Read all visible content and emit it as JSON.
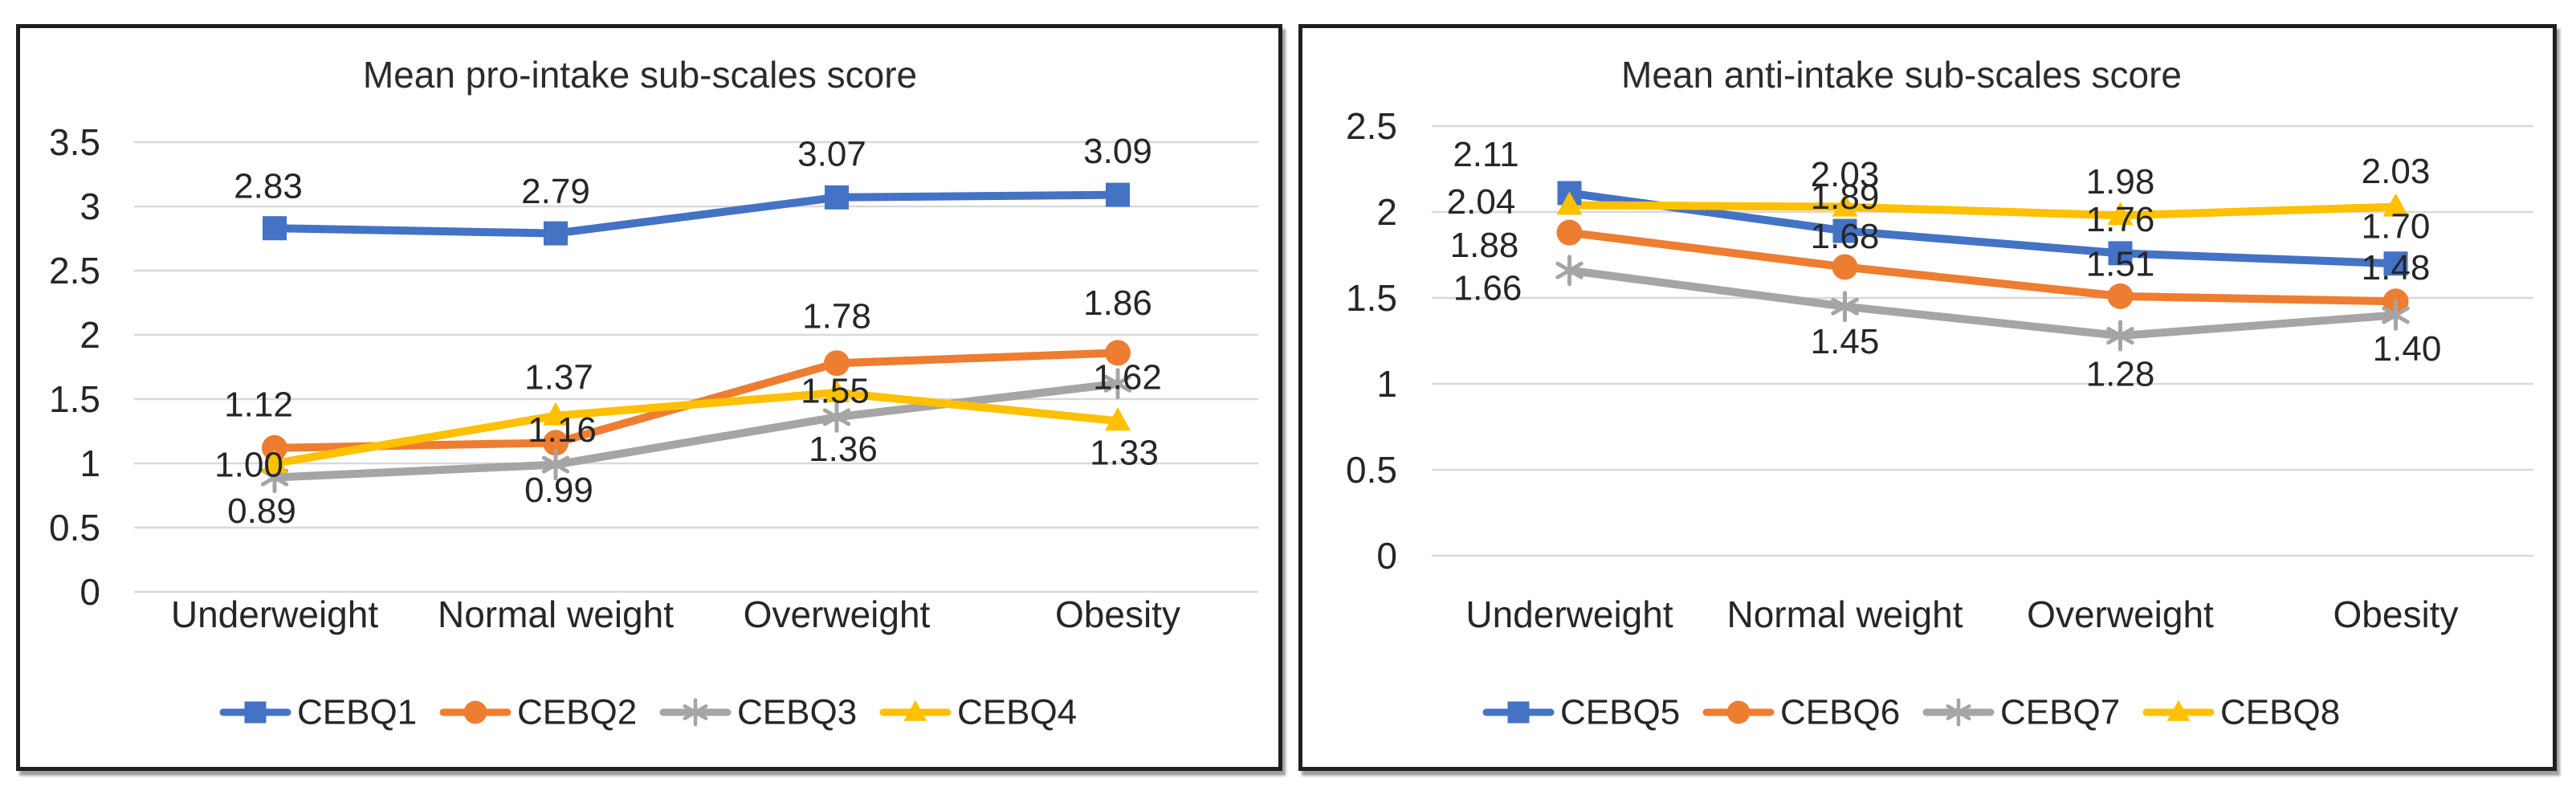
{
  "figure": {
    "background": "#ffffff",
    "panel_border_color": "#1f1f1f",
    "gridline_color": "#D9D9D9",
    "text_color": "#262626",
    "data_label_color": "#1f1f1f"
  },
  "chart_data": [
    {
      "type": "line",
      "title": "Mean pro-intake sub-scales score",
      "categories": [
        "Underweight",
        "Normal weight",
        "Overweight",
        "Obesity"
      ],
      "series": [
        {
          "name": "CEBQ1",
          "color": "#4472C4",
          "marker": "square",
          "values": [
            2.83,
            2.79,
            3.07,
            3.09
          ],
          "labels": [
            "2.83",
            "2.79",
            "3.07",
            "3.09"
          ]
        },
        {
          "name": "CEBQ2",
          "color": "#ED7D31",
          "marker": "circle",
          "values": [
            1.12,
            1.16,
            1.78,
            1.86
          ],
          "labels": [
            "1.12",
            "1.16",
            "1.78",
            "1.86"
          ]
        },
        {
          "name": "CEBQ3",
          "color": "#A5A5A5",
          "marker": "asterisk",
          "values": [
            0.89,
            0.99,
            1.36,
            1.62
          ],
          "labels": [
            "0.89",
            "0.99",
            "1.36",
            "1.62"
          ]
        },
        {
          "name": "CEBQ4",
          "color": "#FFC000",
          "marker": "triangle",
          "values": [
            1.0,
            1.37,
            1.55,
            1.33
          ],
          "labels": [
            "1.00",
            "1.37",
            "1.55",
            "1.33"
          ]
        }
      ],
      "ylim": [
        0,
        3.5
      ],
      "ytick_values": [
        3.5,
        3,
        2.5,
        2,
        1.5,
        1,
        0.5,
        0
      ],
      "yticks": [
        "3.5",
        "3",
        "2.5",
        "2",
        "1.5",
        "1",
        "0.5",
        "0"
      ],
      "xlabel": "",
      "ylabel": "",
      "grid": true,
      "legend_position": "bottom"
    },
    {
      "type": "line",
      "title": "Mean anti-intake sub-scales score",
      "categories": [
        "Underweight",
        "Normal weight",
        "Overweight",
        "Obesity"
      ],
      "series": [
        {
          "name": "CEBQ5",
          "color": "#4472C4",
          "marker": "square",
          "values": [
            2.11,
            1.89,
            1.76,
            1.7
          ],
          "labels": [
            "2.11",
            "1.89",
            "1.76",
            "1.70"
          ]
        },
        {
          "name": "CEBQ6",
          "color": "#ED7D31",
          "marker": "circle",
          "values": [
            1.88,
            1.68,
            1.51,
            1.48
          ],
          "labels": [
            "1.88",
            "1.68",
            "1.51",
            "1.48"
          ]
        },
        {
          "name": "CEBQ7",
          "color": "#A5A5A5",
          "marker": "asterisk",
          "values": [
            1.66,
            1.45,
            1.28,
            1.4
          ],
          "labels": [
            "1.66",
            "1.45",
            "1.28",
            "1.40"
          ]
        },
        {
          "name": "CEBQ8",
          "color": "#FFC000",
          "marker": "triangle",
          "values": [
            2.04,
            2.03,
            1.98,
            2.03
          ],
          "labels": [
            "2.04",
            "2.03",
            "1.98",
            "2.03"
          ]
        }
      ],
      "ylim": [
        0,
        2.5
      ],
      "ytick_values": [
        2.5,
        2,
        1.5,
        1,
        0.5,
        0
      ],
      "yticks": [
        "2.5",
        "2",
        "1.5",
        "1",
        "0.5",
        "0"
      ],
      "xlabel": "",
      "ylabel": "",
      "grid": true,
      "legend_position": "bottom"
    }
  ]
}
